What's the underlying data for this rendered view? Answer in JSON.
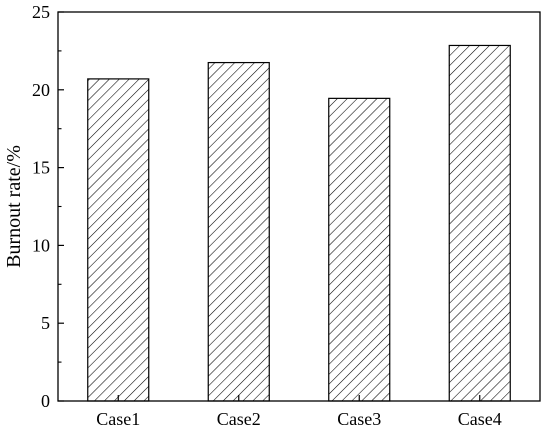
{
  "chart_data": {
    "type": "bar",
    "categories": [
      "Case1",
      "Case2",
      "Case3",
      "Case4"
    ],
    "series": [
      {
        "values": [
          20.7,
          21.75,
          19.45,
          22.85
        ]
      }
    ],
    "title": "",
    "xlabel": "",
    "ylabel": "Burnout rate/%",
    "ylim": [
      0,
      25
    ],
    "yticks": [
      0,
      5,
      10,
      15,
      20,
      25
    ],
    "grid": false,
    "legend": "none",
    "bar_fill": "hatched",
    "bar_stroke": "#000000"
  }
}
